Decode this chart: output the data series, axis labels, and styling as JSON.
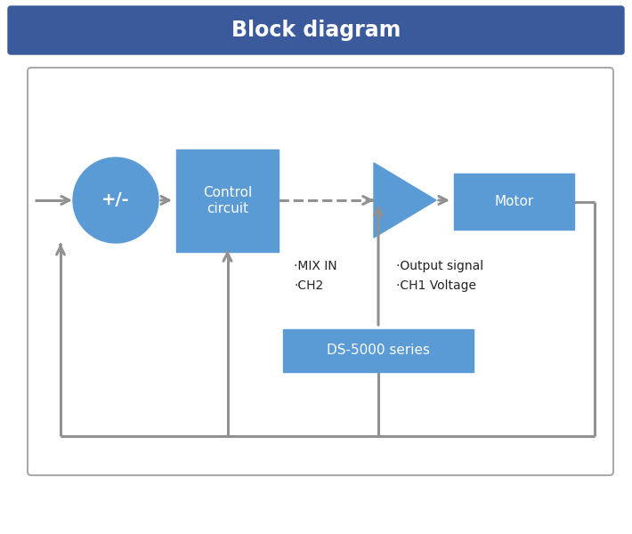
{
  "title": "Block diagram",
  "title_bg_color": "#3a5a9c",
  "title_text_color": "#ffffff",
  "title_fontsize": 17,
  "block_color": "#5b9bd5",
  "block_text_color": "#ffffff",
  "arrow_color": "#919191",
  "circle_color": "#5b9bd5",
  "circle_text": "+/-",
  "control_text": "Control\ncircuit",
  "motor_text": "Motor",
  "ds_text": "DS-5000 series",
  "mix_in_text": "·MIX IN\n·CH2",
  "output_text": "·Output signal\n·CH1 Voltage",
  "bg_color": "#ffffff",
  "border_color": "#aaaaaa",
  "figsize": [
    7.1,
    6.0
  ],
  "dpi": 100
}
